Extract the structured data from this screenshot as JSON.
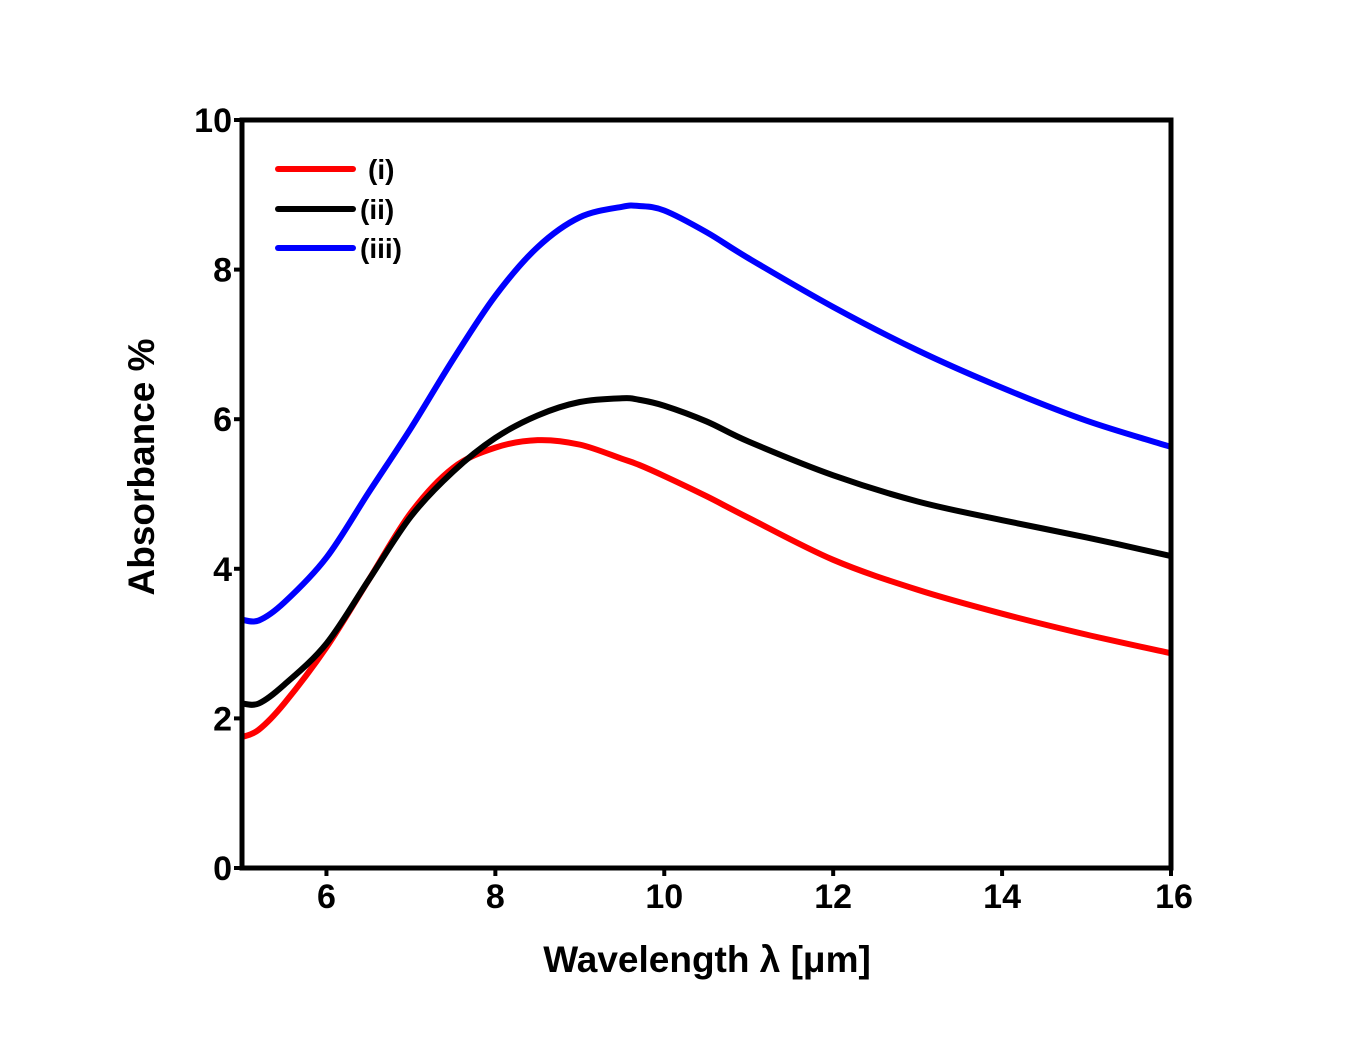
{
  "chart_data": {
    "type": "line",
    "title": "",
    "xlabel": "Wavelength λ [μm]",
    "ylabel": "Absorbance %",
    "xlim": [
      5,
      16
    ],
    "ylim": [
      0,
      10
    ],
    "x_ticks": [
      "6",
      "8",
      "10",
      "12",
      "14",
      "16"
    ],
    "x_tick_values": [
      6,
      8,
      10,
      12,
      14,
      16
    ],
    "y_ticks": [
      "0",
      "2",
      "4",
      "6",
      "8",
      "10"
    ],
    "y_tick_values": [
      0,
      2,
      4,
      6,
      8,
      10
    ],
    "grid": false,
    "legend_position": "top-left",
    "x": [
      5.0,
      5.2,
      5.5,
      6.0,
      6.5,
      7.0,
      7.5,
      8.0,
      8.5,
      9.0,
      9.5,
      9.7,
      10.0,
      10.5,
      11.0,
      12.0,
      13.0,
      14.0,
      15.0,
      16.0
    ],
    "series": [
      {
        "name": "(i)",
        "color": "#ff0000",
        "values": [
          1.75,
          1.85,
          2.2,
          2.95,
          3.85,
          4.75,
          5.35,
          5.62,
          5.72,
          5.66,
          5.47,
          5.39,
          5.24,
          4.97,
          4.68,
          4.12,
          3.72,
          3.4,
          3.12,
          2.87
        ]
      },
      {
        "name": "(ii)",
        "color": "#000000",
        "values": [
          2.2,
          2.2,
          2.45,
          3.0,
          3.85,
          4.7,
          5.3,
          5.75,
          6.05,
          6.23,
          6.28,
          6.26,
          6.18,
          5.97,
          5.7,
          5.25,
          4.9,
          4.65,
          4.42,
          4.17
        ]
      },
      {
        "name": "(iii)",
        "color": "#0000ff",
        "values": [
          3.32,
          3.31,
          3.55,
          4.15,
          5.02,
          5.88,
          6.8,
          7.65,
          8.3,
          8.7,
          8.84,
          8.85,
          8.79,
          8.5,
          8.15,
          7.5,
          6.92,
          6.42,
          5.98,
          5.63
        ]
      }
    ]
  }
}
